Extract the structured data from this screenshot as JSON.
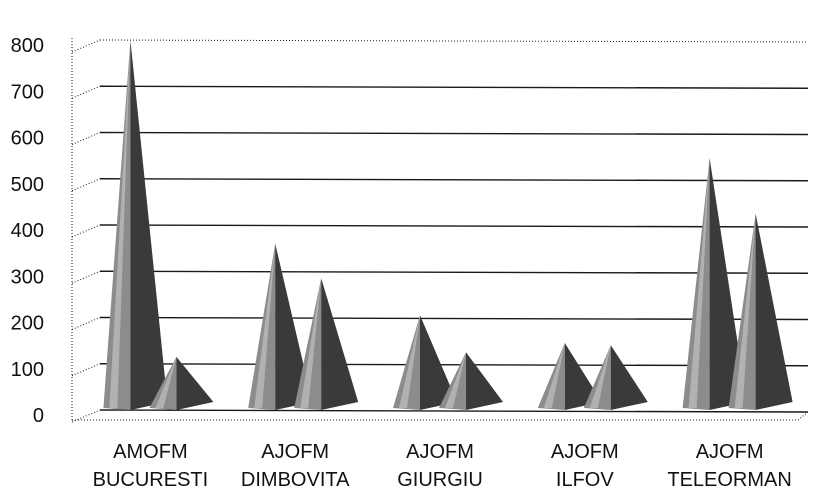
{
  "chart_data": {
    "type": "bar",
    "style": "3d-pyramid",
    "title": "",
    "xlabel": "",
    "ylabel": "",
    "ylim": [
      0,
      800
    ],
    "yticks": [
      0,
      100,
      200,
      300,
      400,
      500,
      600,
      700,
      800
    ],
    "grid": true,
    "legend": "none",
    "categories": [
      [
        "AMOFM",
        "BUCURESTI"
      ],
      [
        "AJOFM",
        "DIMBOVITA"
      ],
      [
        "AJOFM",
        "GIURGIU"
      ],
      [
        "AJOFM",
        "ILFOV"
      ],
      [
        "AJOFM",
        "TELEORMAN"
      ]
    ],
    "series": [
      {
        "values": [
          800,
          360,
          205,
          145,
          545
        ]
      },
      {
        "values": [
          115,
          285,
          125,
          140,
          425
        ]
      }
    ],
    "colors": {
      "light": "#bdbdbd",
      "mid": "#8c8c8c",
      "dark": "#3a3a3a",
      "grid": "#1a1a1a"
    }
  }
}
